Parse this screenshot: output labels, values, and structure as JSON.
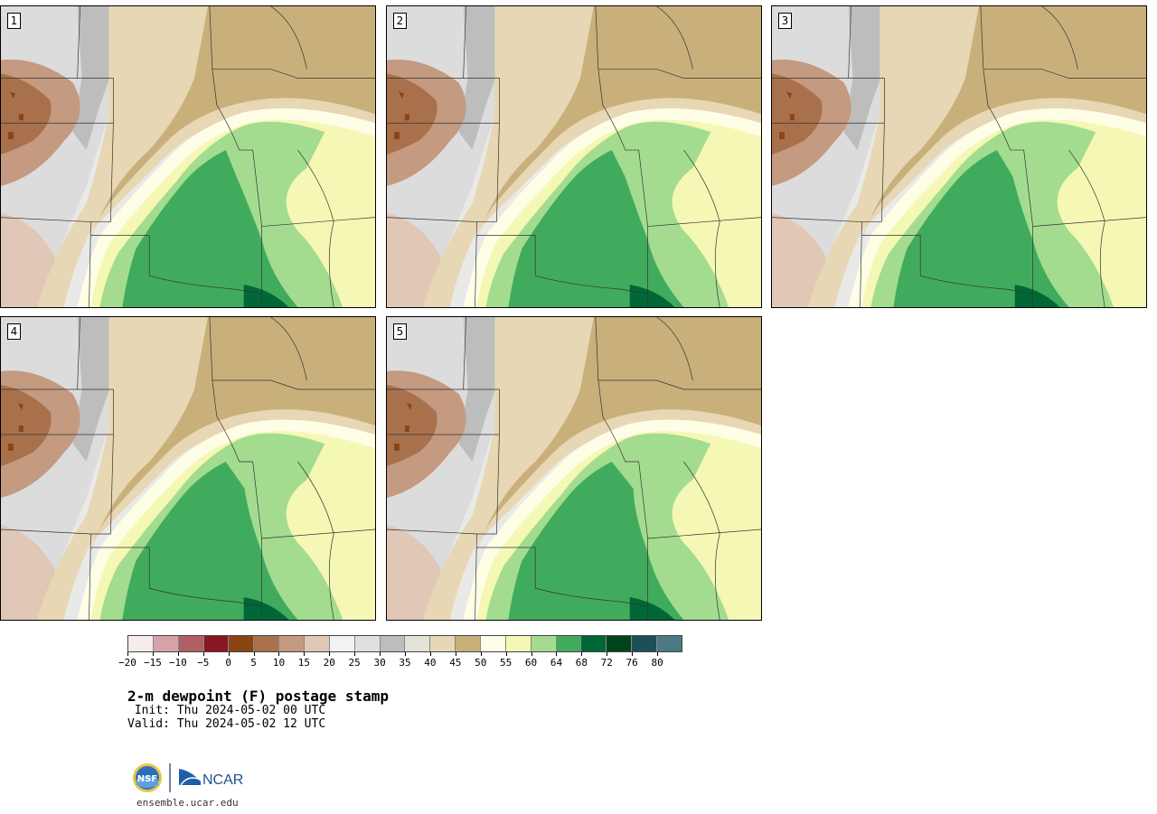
{
  "panels": [
    {
      "id": "1"
    },
    {
      "id": "2"
    },
    {
      "id": "3"
    },
    {
      "id": "4"
    },
    {
      "id": "5"
    }
  ],
  "legend": {
    "colors": [
      "#f6ecec",
      "#d4a3aa",
      "#b06065",
      "#8a1622",
      "#8b4513",
      "#a9714b",
      "#c49a80",
      "#e0c7b6",
      "#f2f2f2",
      "#e0e0e0",
      "#bdbdbd",
      "#e4e2d6",
      "#e7d7b4",
      "#c9b07a",
      "#fefde6",
      "#f4f8b4",
      "#a3dc8f",
      "#41ab5d",
      "#006837",
      "#00441b",
      "#1d4f57",
      "#4c7a82"
    ],
    "tick_labels": [
      "−20",
      "−15",
      "−10",
      "−5",
      "0",
      "5",
      "10",
      "15",
      "20",
      "25",
      "30",
      "35",
      "40",
      "45",
      "50",
      "55",
      "60",
      "64",
      "68",
      "72",
      "76",
      "80"
    ]
  },
  "title": "2-m dewpoint (F) postage stamp",
  "init_line": " Init: Thu 2024-05-02 00 UTC",
  "valid_line": "Valid: Thu 2024-05-02 12 UTC",
  "logos": {
    "left": "NSF",
    "right": "NCAR"
  },
  "website": "ensemble.ucar.edu"
}
